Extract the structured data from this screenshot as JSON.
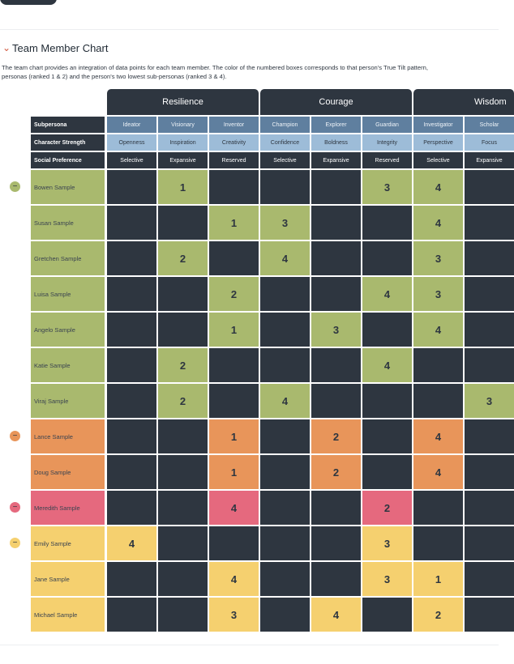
{
  "section": {
    "title": "Team Member Chart",
    "description": [
      "The team chart provides an integration of data points for each team member. The color of the numbered boxes corresponds to that person's True Tilt pattern,",
      "personas (ranked 1 & 2) and the person's two lowest sub-personas (ranked 3 & 4)."
    ]
  },
  "table": {
    "groups": [
      {
        "label": "Resilience",
        "span": 3
      },
      {
        "label": "Courage",
        "span": 3
      },
      {
        "label": "Wisdom",
        "span": 2
      }
    ],
    "row_headers": [
      "Subpersona",
      "Character Strength",
      "Social Preference"
    ],
    "columns": [
      [
        "Ideator",
        "Openness",
        "Selective"
      ],
      [
        "Visionary",
        "Inspiration",
        "Expansive"
      ],
      [
        "Inventor",
        "Creativity",
        "Reserved"
      ],
      [
        "Champion",
        "Confidence",
        "Selective"
      ],
      [
        "Explorer",
        "Boldness",
        "Expansive"
      ],
      [
        "Guardian",
        "Integrity",
        "Reserved"
      ],
      [
        "Investigator",
        "Perspective",
        "Selective"
      ],
      [
        "Scholar",
        "Focus",
        "Expansive"
      ]
    ],
    "rows": [
      {
        "name": "Bowen Sample",
        "color": "#a9b96e",
        "group_start": true,
        "cells": [
          null,
          1,
          null,
          null,
          null,
          3,
          4,
          null
        ]
      },
      {
        "name": "Susan Sample",
        "color": "#a9b96e",
        "cells": [
          null,
          null,
          1,
          3,
          null,
          null,
          4,
          null
        ]
      },
      {
        "name": "Gretchen Sample",
        "color": "#a9b96e",
        "cells": [
          null,
          2,
          null,
          4,
          null,
          null,
          3,
          null
        ]
      },
      {
        "name": "Luisa Sample",
        "color": "#a9b96e",
        "cells": [
          null,
          null,
          2,
          null,
          null,
          4,
          3,
          null
        ]
      },
      {
        "name": "Angelo Sample",
        "color": "#a9b96e",
        "cells": [
          null,
          null,
          1,
          null,
          3,
          null,
          4,
          null
        ]
      },
      {
        "name": "Katie Sample",
        "color": "#a9b96e",
        "cells": [
          null,
          2,
          null,
          null,
          null,
          4,
          null,
          null
        ]
      },
      {
        "name": "Viraj Sample",
        "color": "#a9b96e",
        "cells": [
          null,
          2,
          null,
          4,
          null,
          null,
          null,
          3
        ]
      },
      {
        "name": "Lance Sample",
        "color": "#e8955a",
        "group_start": true,
        "cells": [
          null,
          null,
          1,
          null,
          2,
          null,
          4,
          null
        ]
      },
      {
        "name": "Doug Sample",
        "color": "#e8955a",
        "cells": [
          null,
          null,
          1,
          null,
          2,
          null,
          4,
          null
        ]
      },
      {
        "name": "Meredith Sample",
        "color": "#e5697e",
        "group_start": true,
        "cells": [
          null,
          null,
          4,
          null,
          null,
          2,
          null,
          null
        ]
      },
      {
        "name": "Emily Sample",
        "color": "#f5d06f",
        "group_start": true,
        "cells": [
          4,
          null,
          null,
          null,
          null,
          3,
          null,
          null
        ]
      },
      {
        "name": "Jane Sample",
        "color": "#f5d06f",
        "cells": [
          null,
          null,
          4,
          null,
          null,
          3,
          1,
          null
        ]
      },
      {
        "name": "Michael Sample",
        "color": "#f5d06f",
        "cells": [
          null,
          null,
          3,
          null,
          4,
          null,
          2,
          null
        ]
      }
    ]
  }
}
